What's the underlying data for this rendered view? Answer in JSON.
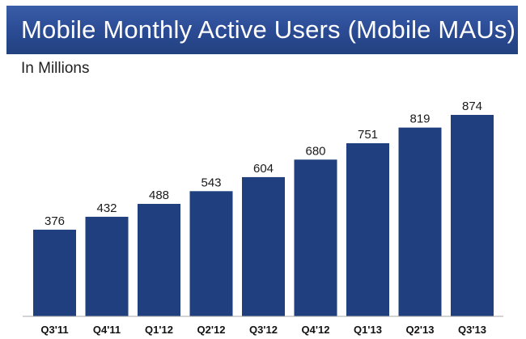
{
  "chart_data": {
    "type": "bar",
    "title": "Mobile Monthly Active Users (Mobile MAUs)",
    "subtitle": "In Millions",
    "categories": [
      "Q3'11",
      "Q4'11",
      "Q1'12",
      "Q2'12",
      "Q3'12",
      "Q4'12",
      "Q1'13",
      "Q2'13",
      "Q3'13"
    ],
    "values": [
      376,
      432,
      488,
      543,
      604,
      680,
      751,
      819,
      874
    ],
    "ylim": [
      0,
      1000
    ],
    "grid": false,
    "bar_color": "#1f3f7f",
    "title_band_color": "#2a4a93"
  }
}
